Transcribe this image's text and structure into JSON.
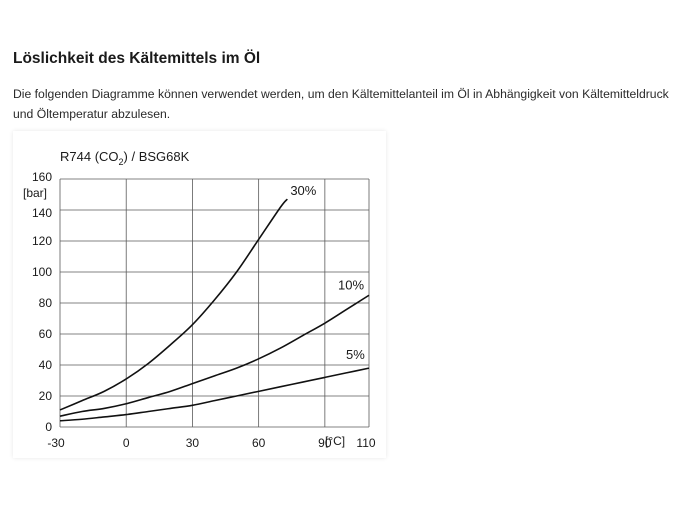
{
  "section": {
    "heading": "Löslichkeit des Kältemittels im Öl",
    "intro": "Die folgenden Diagramme können verwendet werden, um den Kältemittelanteil im Öl in Abhängigkeit von Kältemitteldruck und Öltemperatur abzulesen."
  },
  "chart_data": {
    "type": "line",
    "title_prefix": "R744 (CO",
    "title_sub": "2",
    "title_suffix": ") / BSG68K",
    "ylabel": "[bar]",
    "xlabel": "[°C]",
    "xlim": [
      -30,
      110
    ],
    "ylim": [
      0,
      160
    ],
    "x_ticks": [
      -30,
      0,
      30,
      60,
      90,
      110
    ],
    "y_ticks": [
      0,
      20,
      40,
      60,
      80,
      100,
      120,
      140,
      160
    ],
    "grid": true,
    "series": [
      {
        "name": "30%",
        "x": [
          -30,
          -20,
          -10,
          0,
          10,
          20,
          30,
          40,
          50,
          60,
          70,
          73
        ],
        "y": [
          11,
          17,
          23,
          31,
          41,
          53,
          66,
          82,
          100,
          121,
          142,
          147
        ]
      },
      {
        "name": "10%",
        "x": [
          -30,
          -20,
          -10,
          0,
          10,
          20,
          30,
          40,
          50,
          60,
          70,
          80,
          90,
          100,
          110
        ],
        "y": [
          7,
          10,
          12,
          15,
          19,
          23,
          28,
          33,
          38,
          44,
          51,
          59,
          67,
          76,
          85
        ]
      },
      {
        "name": "5%",
        "x": [
          -30,
          -20,
          -10,
          0,
          10,
          20,
          30,
          40,
          50,
          60,
          70,
          80,
          90,
          100,
          110
        ],
        "y": [
          4,
          5,
          6.5,
          8,
          10,
          12,
          14,
          17,
          20,
          23,
          26,
          29,
          32,
          35,
          38
        ]
      }
    ]
  }
}
